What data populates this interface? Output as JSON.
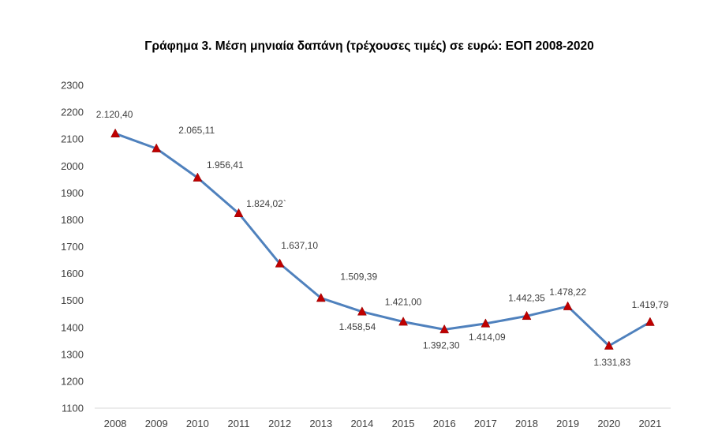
{
  "chart_data": {
    "type": "line",
    "title": "Γράφημα 3. Μέση μηνιαία δαπάνη (τρέχουσες τιμές) σε ευρώ: ΕΟΠ 2008-2020",
    "xlabel": "",
    "ylabel": "",
    "categories": [
      "2008",
      "2009",
      "2010",
      "2011",
      "2012",
      "2013",
      "2014",
      "2015",
      "2016",
      "2017",
      "2018",
      "2019",
      "2020",
      "2021"
    ],
    "series": [
      {
        "name": "Μέση μηνιαία δαπάνη",
        "values": [
          2120.4,
          2065.11,
          1956.41,
          1824.02,
          1637.1,
          1509.39,
          1458.54,
          1421.0,
          1392.3,
          1414.09,
          1442.35,
          1478.22,
          1331.83,
          1419.79
        ],
        "data_labels": [
          "2.120,40",
          "2.065,11",
          "1.956,41",
          "1.824,02`",
          "1.637,10",
          "1.509,39",
          "1.458,54",
          "1.421,00",
          "1.392,30",
          "1.414,09",
          "1.442,35",
          "1.478,22",
          "1.331,83",
          "1.419,79"
        ],
        "label_position": [
          "above",
          "above",
          "above",
          "above",
          "above",
          "above",
          "below",
          "above",
          "below",
          "below",
          "above",
          "above",
          "below",
          "above"
        ],
        "line_color": "#4F81BD",
        "marker_color": "#C00000",
        "marker_shape": "triangle"
      }
    ],
    "ylim": [
      1100,
      2300
    ],
    "yticks": [
      1100,
      1200,
      1300,
      1400,
      1500,
      1600,
      1700,
      1800,
      1900,
      2000,
      2100,
      2200,
      2300
    ],
    "grid": false,
    "legend": "none"
  }
}
